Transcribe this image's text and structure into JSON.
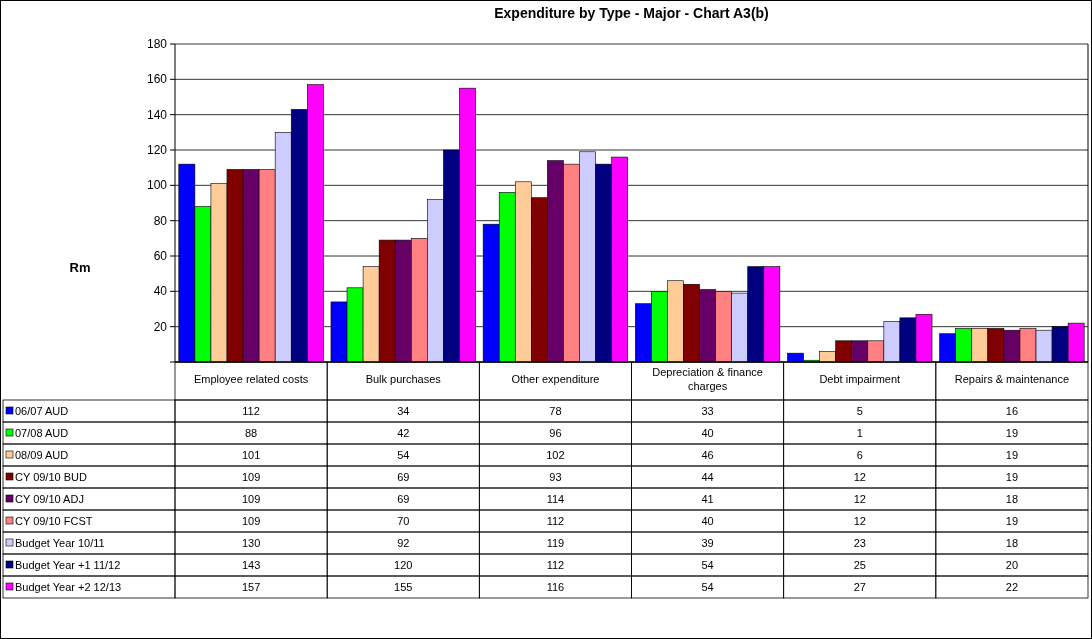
{
  "chart_data": {
    "type": "bar",
    "title": "Expenditure by Type - Major - Chart A3(b)",
    "ylabel": "Rm",
    "categories": [
      "Employee related costs",
      "Bulk purchases",
      "Other expenditure",
      "Depreciation & finance charges",
      "Debt impairment",
      "Repairs & maintenance"
    ],
    "series": [
      {
        "name": "06/07 AUD",
        "color": "#0000ff",
        "values": [
          112,
          34,
          78,
          33,
          5,
          16
        ]
      },
      {
        "name": "07/08 AUD",
        "color": "#00ff00",
        "values": [
          88,
          42,
          96,
          40,
          1,
          19
        ]
      },
      {
        "name": "08/09 AUD",
        "color": "#ffcc99",
        "values": [
          101,
          54,
          102,
          46,
          6,
          19
        ]
      },
      {
        "name": "CY 09/10 BUD",
        "color": "#800000",
        "values": [
          109,
          69,
          93,
          44,
          12,
          19
        ]
      },
      {
        "name": "CY  09/10 ADJ",
        "color": "#660066",
        "values": [
          109,
          69,
          114,
          41,
          12,
          18
        ]
      },
      {
        "name": "CY 09/10 FCST",
        "color": "#ff8080",
        "values": [
          109,
          70,
          112,
          40,
          12,
          19
        ]
      },
      {
        "name": "Budget Year 10/11",
        "color": "#ccccff",
        "values": [
          130,
          92,
          119,
          39,
          23,
          18
        ]
      },
      {
        "name": "Budget Year +1 11/12",
        "color": "#000080",
        "values": [
          143,
          120,
          112,
          54,
          25,
          20
        ]
      },
      {
        "name": "Budget Year +2 12/13",
        "color": "#ff00ff",
        "values": [
          157,
          155,
          116,
          54,
          27,
          22
        ]
      }
    ],
    "ylim": [
      0,
      180
    ],
    "yticks": [
      {
        "value": 0,
        "label": null
      },
      20,
      40,
      60,
      80,
      100,
      120,
      140,
      160,
      180
    ],
    "grid": "y",
    "data_labels": true,
    "legend": "bottom"
  }
}
